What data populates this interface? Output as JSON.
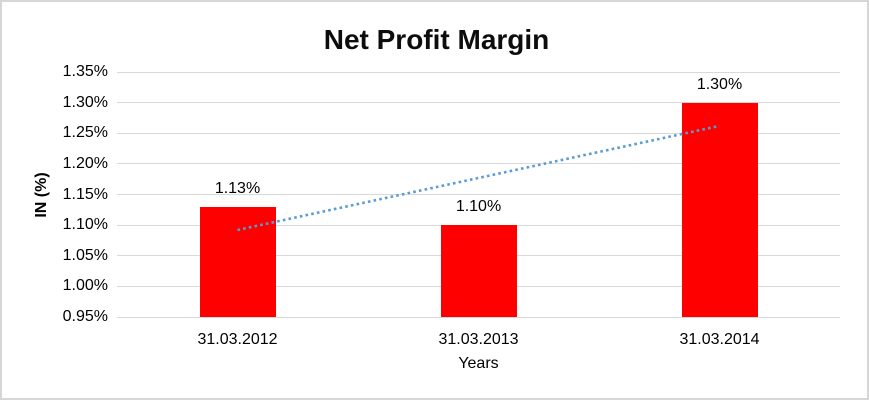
{
  "chart_data": {
    "type": "bar",
    "title": "Net Profit Margin",
    "xlabel": "Years",
    "ylabel": "IN (%)",
    "categories": [
      "31.03.2012",
      "31.03.2013",
      "31.03.2014"
    ],
    "values": [
      1.13,
      1.1,
      1.3
    ],
    "data_labels": [
      "1.13%",
      "1.10%",
      "1.30%"
    ],
    "ylim": [
      0.95,
      1.35
    ],
    "ytick_step": 0.05,
    "ytick_labels": [
      "0.95%",
      "1.00%",
      "1.05%",
      "1.10%",
      "1.15%",
      "1.20%",
      "1.25%",
      "1.30%",
      "1.35%"
    ],
    "grid": true,
    "legend": false,
    "bar_color": "#ff0000",
    "gridline_color": "#d9d9d9",
    "text_color": "#000000",
    "trendline": {
      "type": "linear",
      "style": "dotted",
      "color": "#5b9bd5",
      "start_value": 1.092,
      "end_value": 1.262
    }
  }
}
